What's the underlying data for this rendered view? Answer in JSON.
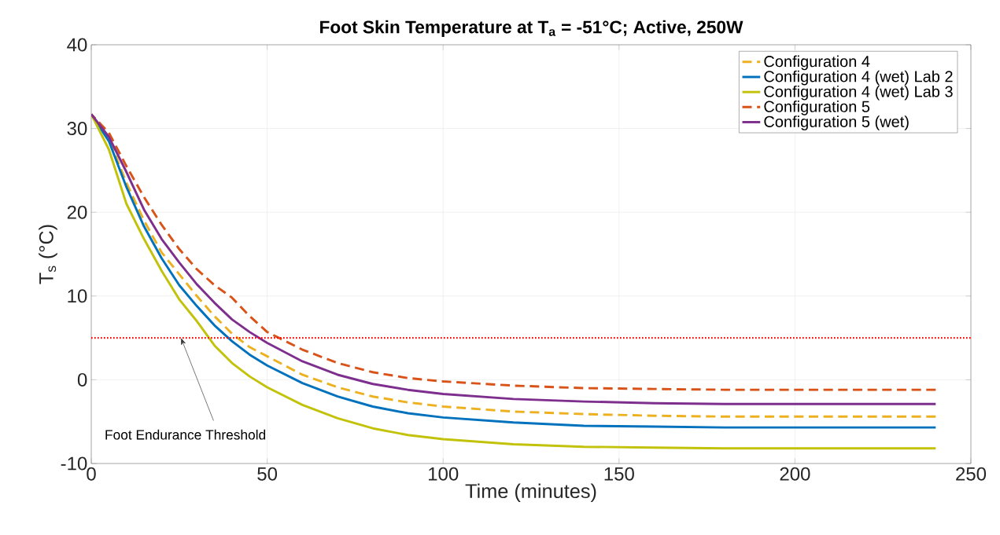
{
  "chart_data": {
    "type": "line",
    "title": "Foot Skin Temperature at T$_{a}$ = -51°C; Active, 250W",
    "xlabel": "Time (minutes)",
    "ylabel": "T$_{s}$ (°C)",
    "x": [
      0,
      5,
      10,
      15,
      20,
      25,
      30,
      35,
      40,
      45,
      50,
      60,
      70,
      80,
      90,
      100,
      120,
      140,
      160,
      180,
      200,
      220,
      240
    ],
    "series": [
      {
        "name": "Configuration 4",
        "color": "#edb120",
        "line_style": "dashed",
        "values": [
          31.7,
          28.8,
          23.5,
          19,
          15.2,
          12.6,
          10,
          7.6,
          5.5,
          3.9,
          2.8,
          0.6,
          -0.9,
          -2,
          -2.7,
          -3.2,
          -3.8,
          -4.1,
          -4.3,
          -4.4,
          -4.4,
          -4.4,
          -4.4
        ]
      },
      {
        "name": "Configuration 4 (wet) Lab 2",
        "color": "#0072bd",
        "line_style": "solid",
        "values": [
          31.7,
          28.5,
          23,
          18.3,
          14.5,
          11.3,
          8.8,
          6.5,
          4.6,
          3,
          1.7,
          -0.4,
          -2,
          -3.2,
          -4,
          -4.5,
          -5.1,
          -5.5,
          -5.6,
          -5.7,
          -5.7,
          -5.7,
          -5.7
        ]
      },
      {
        "name": "Configuration 4 (wet) Lab 3",
        "color": "#c2c20a",
        "line_style": "solid",
        "values": [
          31.7,
          27.5,
          21,
          16.8,
          13,
          9.6,
          7,
          4.1,
          2,
          0.4,
          -0.9,
          -3,
          -4.6,
          -5.8,
          -6.6,
          -7.1,
          -7.7,
          -8,
          -8.1,
          -8.2,
          -8.2,
          -8.2,
          -8.2
        ]
      },
      {
        "name": "Configuration 5",
        "color": "#d95319",
        "line_style": "dashed",
        "values": [
          31.7,
          29.5,
          25.5,
          21.8,
          18.5,
          15.6,
          13.2,
          11.3,
          9.8,
          7.6,
          5.7,
          3.6,
          2,
          0.9,
          0.2,
          -0.2,
          -0.7,
          -1,
          -1.1,
          -1.2,
          -1.2,
          -1.2,
          -1.2
        ]
      },
      {
        "name": "Configuration 5 (wet)",
        "color": "#7e2f8e",
        "line_style": "solid",
        "values": [
          31.7,
          29,
          24.8,
          20.3,
          16.8,
          14,
          11.4,
          9.2,
          7.2,
          5.7,
          4.4,
          2.2,
          0.6,
          -0.5,
          -1.2,
          -1.7,
          -2.3,
          -2.6,
          -2.8,
          -2.9,
          -2.9,
          -2.9,
          -2.9
        ]
      }
    ],
    "xlim": [
      0,
      250
    ],
    "xticks": [
      0,
      50,
      100,
      150,
      200,
      250
    ],
    "ylim": [
      -10,
      40
    ],
    "yticks": [
      -10,
      0,
      10,
      20,
      30,
      40
    ],
    "grid": true,
    "legend": "top right",
    "ref_lines": [
      {
        "axis": "y",
        "value": 5,
        "color": "#ff0000",
        "line_style": "dotted"
      }
    ],
    "annotations": [
      {
        "text": "Foot Endurance Threshold",
        "x": 25.5,
        "y": 5
      }
    ]
  }
}
